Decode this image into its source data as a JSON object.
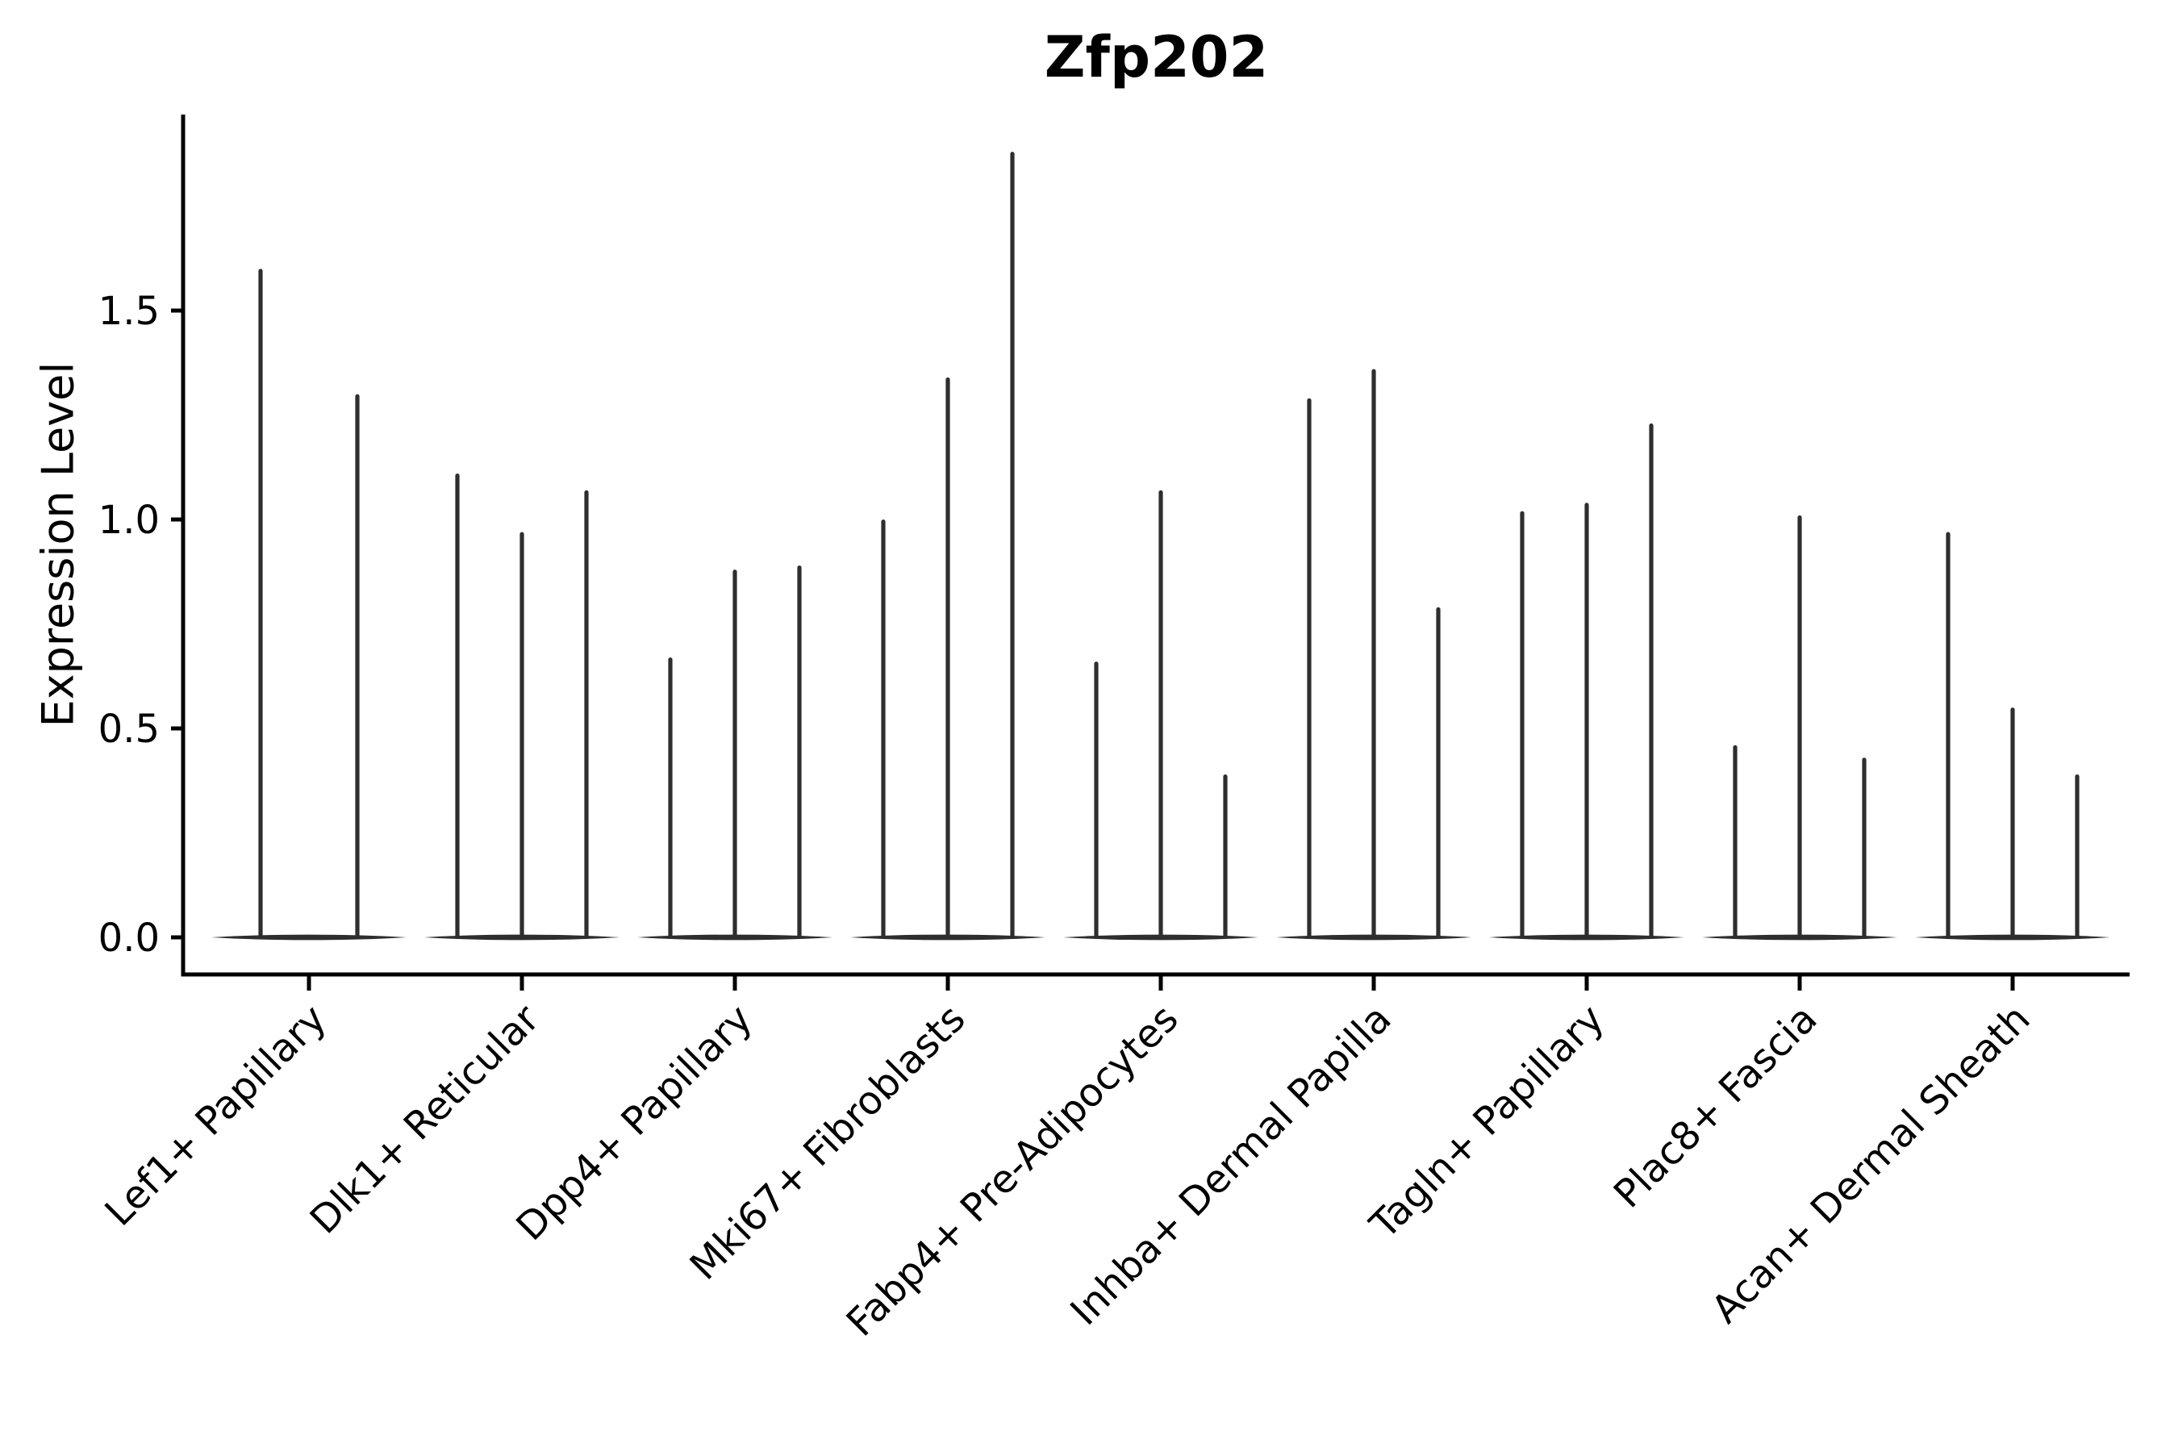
{
  "figure": {
    "title": "Zfp202",
    "ylabel": "Expression Level"
  },
  "chart_data": {
    "type": "violin",
    "title": "Zfp202",
    "xlabel": "",
    "ylabel": "Expression Level",
    "ylim": [
      0,
      1.97
    ],
    "grid": false,
    "legend": null,
    "background": "#ffffff",
    "yticks": [
      {
        "label": "0.0",
        "value": 0.0
      },
      {
        "label": "0.5",
        "value": 0.5
      },
      {
        "label": "1.0",
        "value": 1.0
      },
      {
        "label": "1.5",
        "value": 1.5
      }
    ],
    "categories": [
      "Lef1+ Papillary",
      "Dlk1+ Reticular",
      "Dpp4+ Papillary",
      "Mki67+ Fibroblasts",
      "Fabp4+ Pre-Adipocytes",
      "Inhba+ Dermal Papilla",
      "Tagln+ Papillary",
      "Plac8+ Fascia",
      "Acan+ Dermal Sheath"
    ],
    "groups": [
      {
        "category": "Lef1+ Papillary",
        "violin_peak_values": [
          1.6,
          1.3
        ]
      },
      {
        "category": "Dlk1+ Reticular",
        "violin_peak_values": [
          1.11,
          0.97,
          1.07
        ]
      },
      {
        "category": "Dpp4+ Papillary",
        "violin_peak_values": [
          0.67,
          0.88,
          0.89
        ]
      },
      {
        "category": "Mki67+ Fibroblasts",
        "violin_peak_values": [
          1.0,
          1.34,
          1.88
        ]
      },
      {
        "category": "Fabp4+ Pre-Adipocytes",
        "violin_peak_values": [
          0.66,
          1.07,
          0.39
        ]
      },
      {
        "category": "Inhba+ Dermal Papilla",
        "violin_peak_values": [
          1.29,
          1.36,
          0.79
        ]
      },
      {
        "category": "Tagln+ Papillary",
        "violin_peak_values": [
          1.02,
          1.04,
          1.23
        ]
      },
      {
        "category": "Plac8+ Fascia",
        "violin_peak_values": [
          0.46,
          1.01,
          0.43
        ]
      },
      {
        "category": "Acan+ Dermal Sheath",
        "violin_peak_values": [
          0.97,
          0.55,
          0.39
        ]
      }
    ],
    "style": {
      "violin_color": "#2e2e2e",
      "axis_color": "#000000",
      "text_color": "#000000"
    }
  }
}
